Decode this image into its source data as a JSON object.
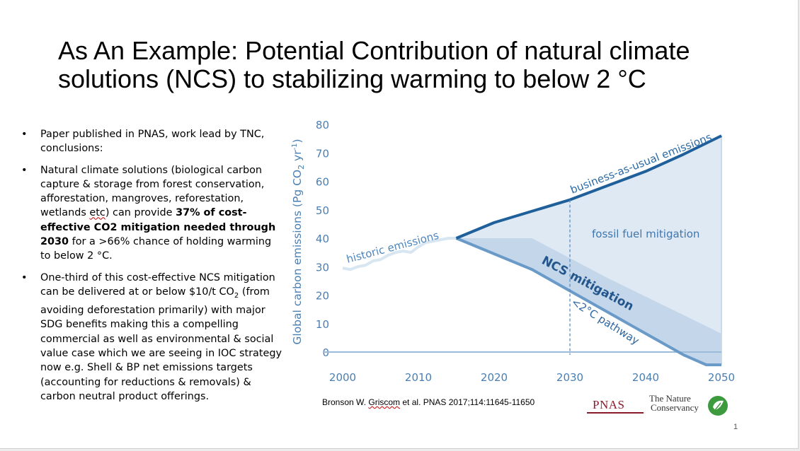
{
  "title": {
    "line1": "As An Example: Potential Contribution of natural climate",
    "line2": "solutions (NCS) to stabilizing warming to below 2 °C"
  },
  "bullets": [
    {
      "text": "Paper published in PNAS, work lead by TNC, conclusions:"
    },
    {
      "pre": "Natural climate solutions (biological carbon capture & storage from forest conservation, afforestation, mangroves, reforestation, wetlands ",
      "squiggle": "etc",
      "mid": ") can provide ",
      "bold": "37% of cost-effective CO2 mitigation needed through 2030",
      "post": " for a >66% chance of holding warming to below 2 °C."
    },
    {
      "pre": "One-third of this cost-effective NCS mitigation can be delivered at or below $10/t CO",
      "sub": "2",
      "post": " (from avoiding deforestation primarily) with major SDG benefits making this a compelling commercial as well as environmental & social value case which we are seeing in IOC strategy now e.g. Shell & BP net emissions targets (accounting for reductions & removals) & carbon neutral product offerings."
    }
  ],
  "chart_data": {
    "type": "line",
    "ylabel_main": "Global carbon emissions (Pg CO",
    "ylabel_sub": "2",
    "ylabel_unit": " yr",
    "ylabel_sup": "-1",
    "ylabel_close": ")",
    "xlim": [
      2000,
      2050
    ],
    "ylim": [
      0,
      80
    ],
    "x_ticks": [
      2000,
      2010,
      2020,
      2030,
      2040,
      2050
    ],
    "y_ticks": [
      0,
      10,
      20,
      30,
      40,
      50,
      60,
      70,
      80
    ],
    "series": [
      {
        "name": "historic emissions",
        "x": [
          2000,
          2001,
          2002,
          2003,
          2004,
          2005,
          2006,
          2007,
          2008,
          2009,
          2010,
          2011,
          2012,
          2013,
          2014,
          2015
        ],
        "y": [
          29.5,
          29,
          30,
          30.5,
          32,
          32.5,
          34,
          35,
          35.5,
          35,
          37,
          38.5,
          39,
          39.5,
          40,
          40
        ]
      },
      {
        "name": "business-as-usual emissions",
        "x": [
          2015,
          2020,
          2025,
          2030,
          2035,
          2040,
          2045,
          2050
        ],
        "y": [
          40,
          45.5,
          49.5,
          53.5,
          58.5,
          63.5,
          69.5,
          76
        ]
      },
      {
        "name": "<2°C pathway",
        "x": [
          2015,
          2020,
          2025,
          2030,
          2035,
          2040,
          2045,
          2048,
          2050
        ],
        "y": [
          40,
          34.5,
          29,
          21.5,
          14,
          6.5,
          -1,
          -4.5,
          -4.5
        ]
      },
      {
        "name": "NCS mitigation upper bound",
        "x": [
          2015,
          2020,
          2025,
          2030,
          2035,
          2040,
          2045,
          2050
        ],
        "y": [
          40,
          40,
          40,
          33,
          26,
          19.5,
          13,
          6.5
        ]
      }
    ],
    "annotations": {
      "historic": "historic emissions",
      "bau": "business-as-usual emissions",
      "fossil": "fossil fuel mitigation",
      "ncs": "NCS mitigation",
      "pathway": "<2°C pathway"
    },
    "marker_year": 2030,
    "colors": {
      "bau": "#1f5f9a",
      "pathway": "#6a9bc8",
      "historic": "#d8e6f2",
      "fill_light": "#dfe9f3",
      "fill_dark": "#c3d6ea",
      "axis_text": "#4a7fb3"
    }
  },
  "citation": {
    "author_squiggle": "Griscom",
    "pre": "Bronson W. ",
    "post": " et al. PNAS 2017;114:11645-11650"
  },
  "logos": {
    "pnas": "PNAS",
    "tnc_line1": "The Nature",
    "tnc_line2": "Conservancy"
  },
  "page_number": "1"
}
